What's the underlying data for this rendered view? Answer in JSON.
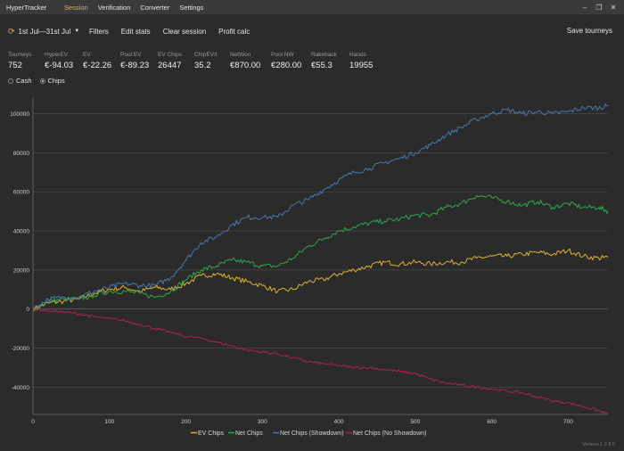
{
  "app": {
    "title": "HyperTracker",
    "version": "Version 1.2.8.0"
  },
  "menu": [
    {
      "label": "Session",
      "active": true
    },
    {
      "label": "Verification",
      "active": false
    },
    {
      "label": "Converter",
      "active": false
    },
    {
      "label": "Settings",
      "active": false
    }
  ],
  "window_controls": {
    "minimize": "–",
    "restore": "❐",
    "close": "✕"
  },
  "toolbar": {
    "date_range": "1st Jul—31st Jul",
    "filters": "Filters",
    "edit_stats": "Edit stats",
    "clear_session": "Clear session",
    "profit_calc": "Profit calc",
    "save_tourneys": "Save tourneys"
  },
  "stats": [
    {
      "label": "Tourneys",
      "value": "752"
    },
    {
      "label": "HyperEV",
      "value": "€-94.03"
    },
    {
      "label": "EV",
      "value": "€-22.26"
    },
    {
      "label": "Pool EV",
      "value": "€-89.23"
    },
    {
      "label": "EV Chips",
      "value": "26447"
    },
    {
      "label": "ChipEV/t",
      "value": "35.2"
    },
    {
      "label": "NetWon",
      "value": "€870.00"
    },
    {
      "label": "Pool NW",
      "value": "€280.00"
    },
    {
      "label": "Rakeback",
      "value": "€55.3"
    },
    {
      "label": "Hands",
      "value": "19955"
    }
  ],
  "view_mode": {
    "options": [
      "Cash",
      "Chips"
    ],
    "selected": "Chips"
  },
  "chart_data": {
    "type": "line",
    "title": "",
    "xlabel": "",
    "ylabel": "",
    "xlim": [
      0,
      752
    ],
    "ylim": [
      -54000,
      108000
    ],
    "xticks": [
      0,
      100,
      200,
      300,
      400,
      500,
      600,
      700
    ],
    "yticks": [
      -40000,
      -20000,
      0,
      20000,
      40000,
      60000,
      80000,
      100000
    ],
    "grid": "horizontal",
    "legend_position": "bottom",
    "series": [
      {
        "name": "EV Chips",
        "color": "#e0b030",
        "x": [
          0,
          20,
          40,
          60,
          80,
          100,
          120,
          140,
          160,
          180,
          200,
          220,
          240,
          260,
          280,
          300,
          320,
          340,
          360,
          380,
          400,
          420,
          440,
          460,
          480,
          500,
          520,
          540,
          560,
          580,
          600,
          620,
          640,
          660,
          680,
          700,
          720,
          740,
          752
        ],
        "values": [
          0,
          3000,
          4000,
          5000,
          8000,
          10000,
          11000,
          9000,
          11000,
          10000,
          13000,
          17000,
          18000,
          16000,
          14000,
          12000,
          9000,
          10000,
          14000,
          15000,
          18000,
          20000,
          22000,
          24000,
          23000,
          24000,
          23000,
          24000,
          24000,
          26000,
          27000,
          27000,
          28000,
          29000,
          28000,
          30000,
          27000,
          26000,
          26447
        ]
      },
      {
        "name": "Net Chips",
        "color": "#2fa84a",
        "x": [
          0,
          20,
          40,
          60,
          80,
          100,
          120,
          140,
          160,
          180,
          200,
          220,
          240,
          260,
          280,
          300,
          320,
          340,
          360,
          380,
          400,
          420,
          440,
          460,
          480,
          500,
          520,
          540,
          560,
          580,
          600,
          620,
          640,
          660,
          680,
          700,
          720,
          740,
          752
        ],
        "values": [
          0,
          4000,
          5000,
          5000,
          7000,
          9000,
          9000,
          8000,
          6000,
          9000,
          15000,
          20000,
          22000,
          25000,
          24000,
          22000,
          22000,
          26000,
          32000,
          36000,
          40000,
          42000,
          44000,
          45000,
          46000,
          48000,
          48000,
          52000,
          54000,
          58000,
          57000,
          55000,
          53000,
          55000,
          52000,
          54000,
          52000,
          52000,
          50000
        ]
      },
      {
        "name": "Net Chips (Showdown)",
        "color": "#4a78b0",
        "x": [
          0,
          20,
          40,
          60,
          80,
          100,
          120,
          140,
          160,
          180,
          200,
          220,
          240,
          260,
          280,
          300,
          320,
          340,
          360,
          380,
          400,
          420,
          440,
          460,
          480,
          500,
          520,
          540,
          560,
          580,
          600,
          620,
          640,
          660,
          680,
          700,
          720,
          740,
          752
        ],
        "values": [
          0,
          5000,
          6000,
          6000,
          9000,
          11000,
          13000,
          12000,
          12000,
          16000,
          25000,
          34000,
          37000,
          43000,
          47000,
          47000,
          47000,
          53000,
          56000,
          61000,
          66000,
          70000,
          72000,
          75000,
          77000,
          80000,
          84000,
          89000,
          93000,
          97000,
          100000,
          102000,
          100000,
          101000,
          100000,
          101000,
          103000,
          103000,
          104000
        ]
      },
      {
        "name": "Net Chips (No Showdown)",
        "color": "#b0234a",
        "x": [
          0,
          20,
          40,
          60,
          80,
          100,
          120,
          140,
          160,
          180,
          200,
          220,
          240,
          260,
          280,
          300,
          320,
          340,
          360,
          380,
          400,
          420,
          440,
          460,
          480,
          500,
          520,
          540,
          560,
          580,
          600,
          620,
          640,
          660,
          680,
          700,
          720,
          740,
          752
        ],
        "values": [
          0,
          -1000,
          -1500,
          -2500,
          -4000,
          -5000,
          -6000,
          -8000,
          -10000,
          -12000,
          -14000,
          -15000,
          -17000,
          -19000,
          -21000,
          -22000,
          -23000,
          -25000,
          -27000,
          -28000,
          -29000,
          -30000,
          -30000,
          -31000,
          -32000,
          -33000,
          -36000,
          -38000,
          -39000,
          -40000,
          -41000,
          -42000,
          -43000,
          -45000,
          -47000,
          -48000,
          -50000,
          -52000,
          -54000
        ]
      }
    ]
  }
}
